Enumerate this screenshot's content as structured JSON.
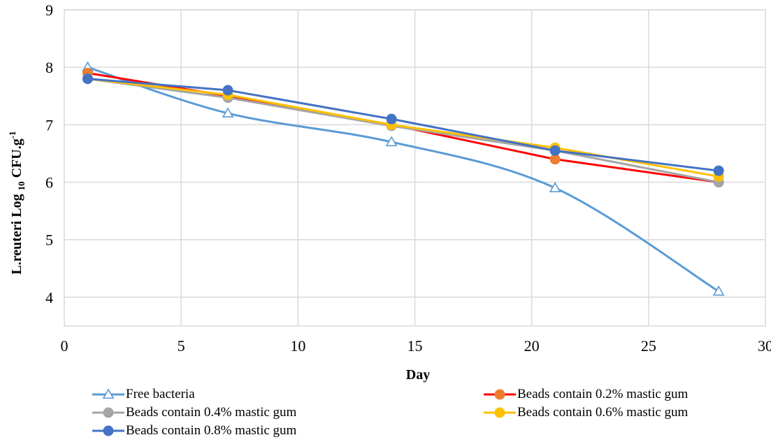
{
  "chart_data": {
    "type": "line",
    "title": "",
    "xlabel": "Day",
    "ylabel_parts": [
      "L.reuteri  Log ",
      "10",
      " CFU.g",
      "-1"
    ],
    "xlim": [
      0,
      30
    ],
    "ylim": [
      3.5,
      9
    ],
    "x_ticks": [
      "0",
      "5",
      "10",
      "15",
      "20",
      "25",
      "30"
    ],
    "y_ticks": [
      "4",
      "5",
      "6",
      "7",
      "8",
      "9"
    ],
    "grid": true,
    "legend_position": "bottom",
    "x": [
      1,
      7,
      14,
      21,
      28
    ],
    "series": [
      {
        "name": "Free bacteria",
        "values": [
          8.0,
          7.2,
          6.7,
          5.9,
          4.1
        ],
        "color": "#5b9bd5",
        "marker": "triangle-open",
        "smooth": true
      },
      {
        "name": "Beads contain 0.2% mastic gum",
        "values": [
          7.9,
          7.5,
          7.0,
          6.4,
          6.0
        ],
        "color": "#ff0000",
        "marker_color": "#ed7d31",
        "marker": "circle"
      },
      {
        "name": "Beads contain 0.4% mastic gum",
        "values": [
          7.8,
          7.47,
          6.98,
          6.55,
          6.0
        ],
        "color": "#a5a5a5",
        "marker": "circle"
      },
      {
        "name": "Beads contain 0.6% mastic gum",
        "values": [
          7.8,
          7.52,
          7.0,
          6.6,
          6.1
        ],
        "color": "#ffc000",
        "marker": "circle"
      },
      {
        "name": "Beads contain 0.8% mastic gum",
        "values": [
          7.8,
          7.6,
          7.1,
          6.55,
          6.2
        ],
        "color": "#4472c4",
        "marker": "circle"
      }
    ]
  }
}
